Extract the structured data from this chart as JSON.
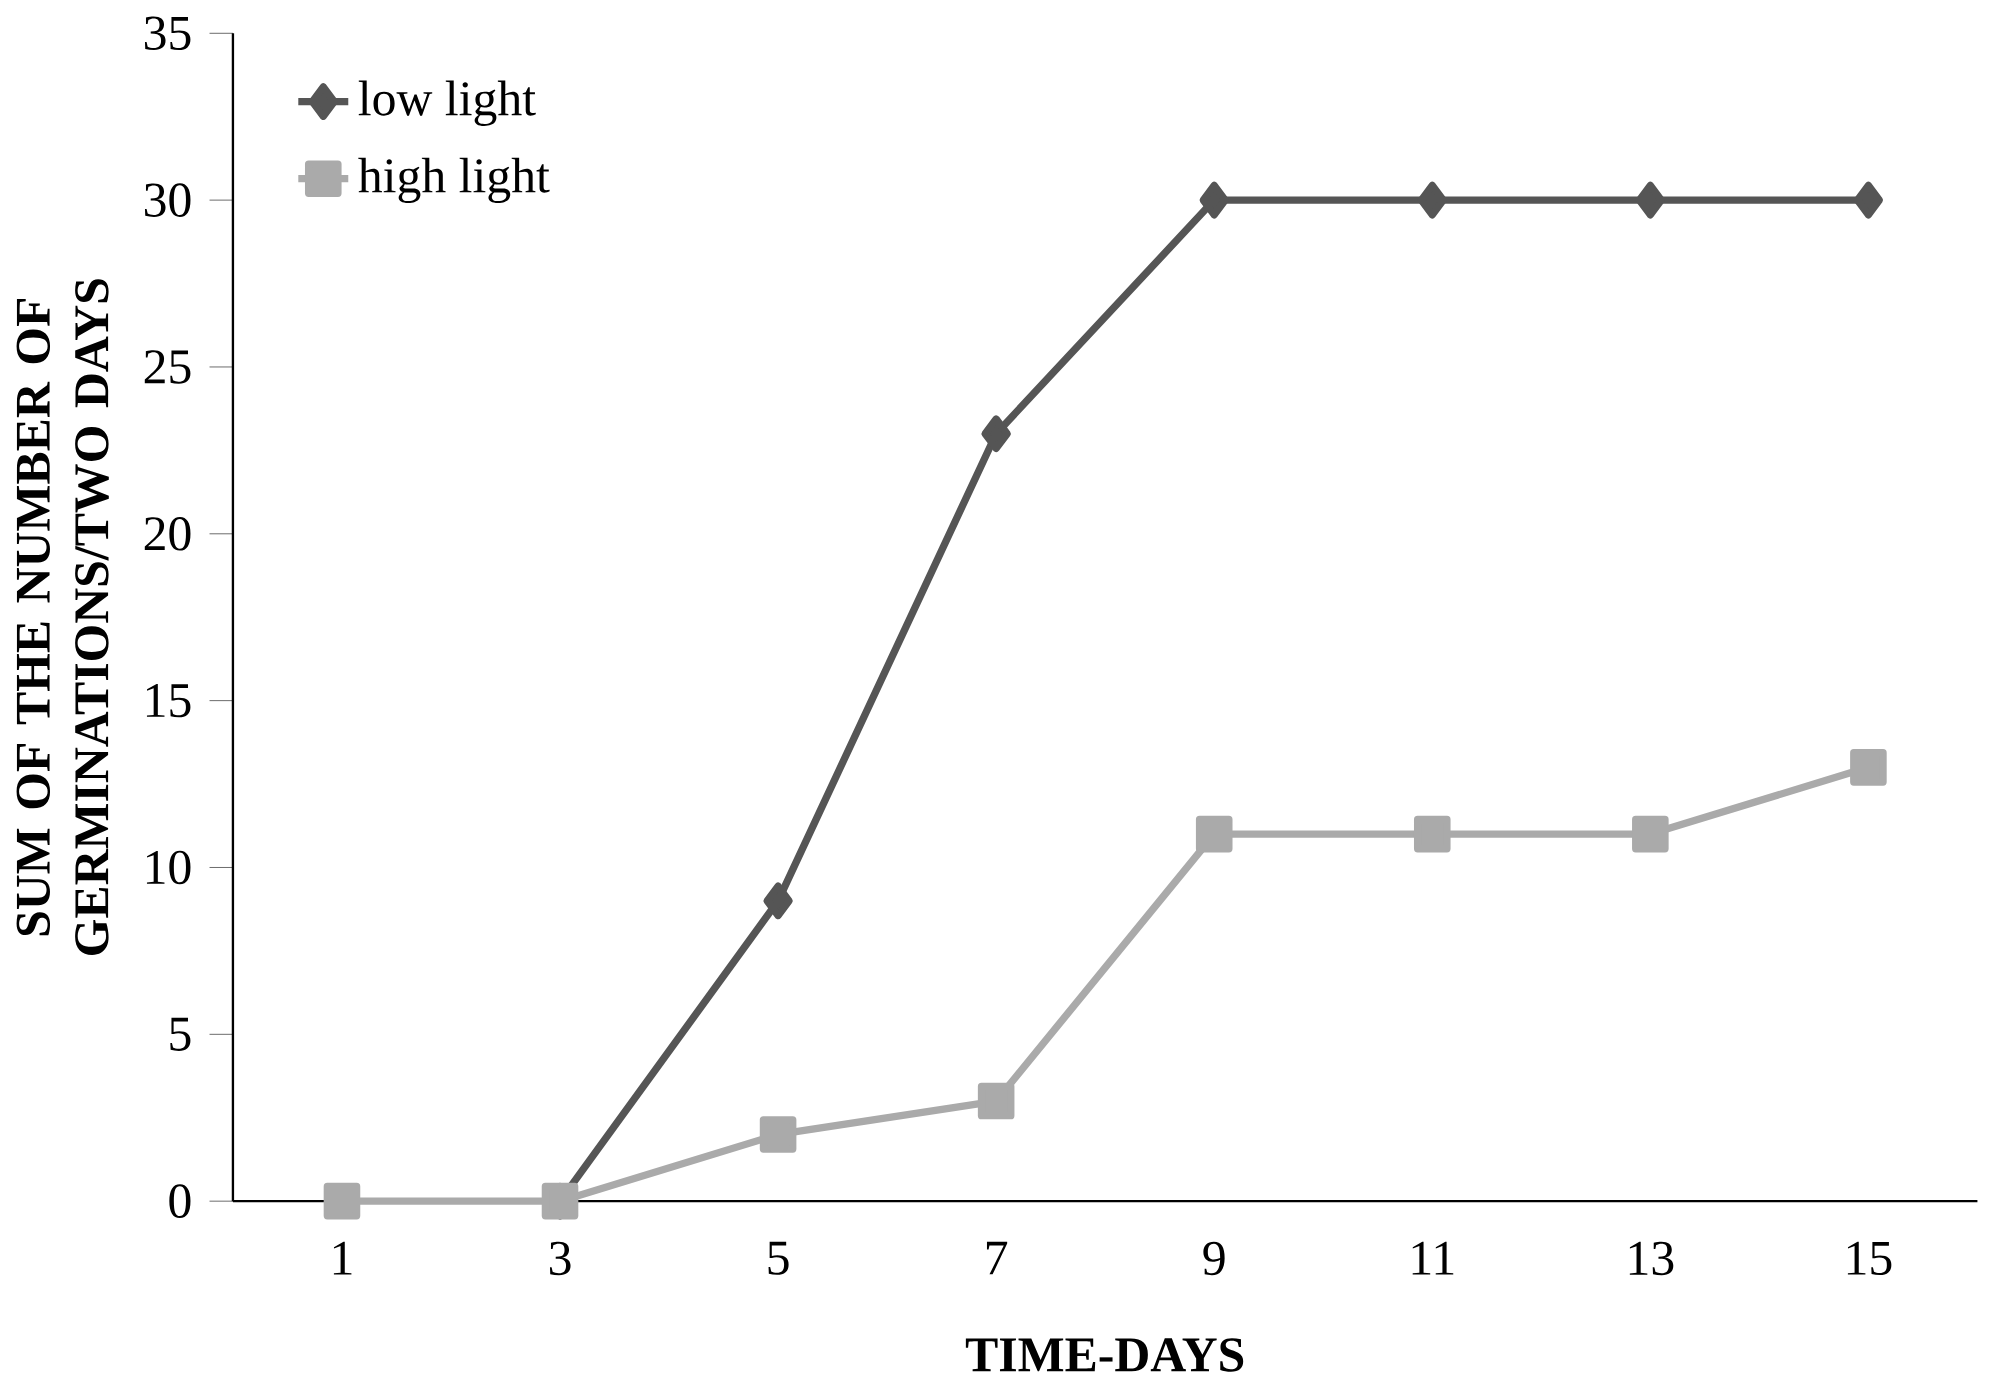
{
  "chart_data": {
    "type": "line",
    "xlabel": "TIME-DAYS",
    "ylabel": "SUM OF THE NUMBER OF GERMINATIONS/TWO DAYS",
    "categories": [
      "1",
      "3",
      "5",
      "7",
      "9",
      "11",
      "13",
      "15"
    ],
    "series": [
      {
        "name": "low light",
        "color": "#555555",
        "marker": "diamond",
        "values": [
          null,
          0,
          9,
          23,
          30,
          30,
          30,
          30
        ]
      },
      {
        "name": "high light",
        "color": "#aaaaaa",
        "marker": "square",
        "values": [
          0,
          0,
          2,
          3,
          11,
          11,
          11,
          13
        ]
      }
    ],
    "ylim": [
      0,
      35
    ],
    "yticks": [
      0,
      5,
      10,
      15,
      20,
      25,
      30,
      35
    ],
    "grid": false,
    "legend": "top left",
    "line_style": "solid"
  }
}
